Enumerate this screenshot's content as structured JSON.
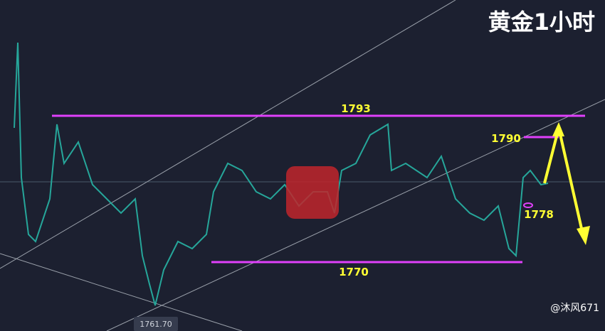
{
  "header": {
    "title": "黄金1小时"
  },
  "levels": {
    "resistance": "1793",
    "target_high": "1790",
    "marker": "1778",
    "support": "1770"
  },
  "price_label": "1761.70",
  "watermark": "@沐风671"
}
